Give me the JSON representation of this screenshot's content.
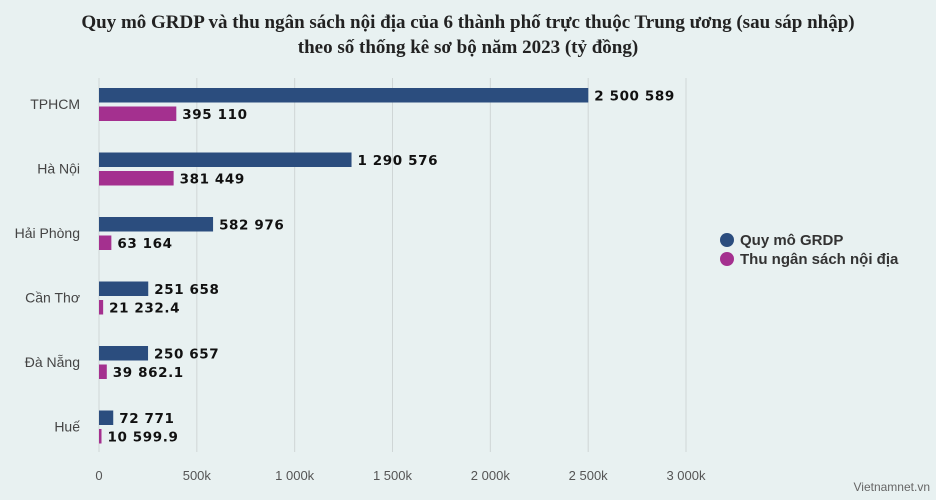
{
  "title_line1": "Quy mô GRDP và thu ngân sách nội địa của 6 thành phố trực thuộc Trung ương (sau sáp nhập)",
  "title_line2": "theo số thống kê sơ bộ năm 2023 (tỷ đồng)",
  "source": "Vietnamnet.vn",
  "colors": {
    "grdp": "#2b4d7e",
    "budget": "#a4308f"
  },
  "chart_data": {
    "type": "bar",
    "orientation": "horizontal",
    "title": "Quy mô GRDP và thu ngân sách nội địa của 6 thành phố trực thuộc Trung ương (sau sáp nhập) theo số thống kê sơ bộ năm 2023 (tỷ đồng)",
    "categories": [
      "TPHCM",
      "Hà Nội",
      "Hải Phòng",
      "Cần Thơ",
      "Đà Nẵng",
      "Huế"
    ],
    "series": [
      {
        "name": "Quy mô GRDP",
        "values": [
          2500589,
          1290576,
          582976,
          251658,
          250657,
          72771
        ],
        "labels": [
          "2 500 589",
          "1 290 576",
          "582 976",
          "251 658",
          "250 657",
          "72 771"
        ]
      },
      {
        "name": "Thu ngân sách nội địa",
        "values": [
          395110,
          381449,
          63164,
          21232.4,
          39862.1,
          10599.9
        ],
        "labels": [
          "395 110",
          "381 449",
          "63 164",
          "21 232.4",
          "39 862.1",
          "10 599.9"
        ]
      }
    ],
    "xlim": [
      0,
      3000000
    ],
    "xticks": [
      0,
      500000,
      1000000,
      1500000,
      2000000,
      2500000,
      3000000
    ],
    "xtick_labels": [
      "0",
      "500k",
      "1 000k",
      "1 500k",
      "2 000k",
      "2 500k",
      "3 000k"
    ],
    "grid": true,
    "legend_position": "right"
  }
}
